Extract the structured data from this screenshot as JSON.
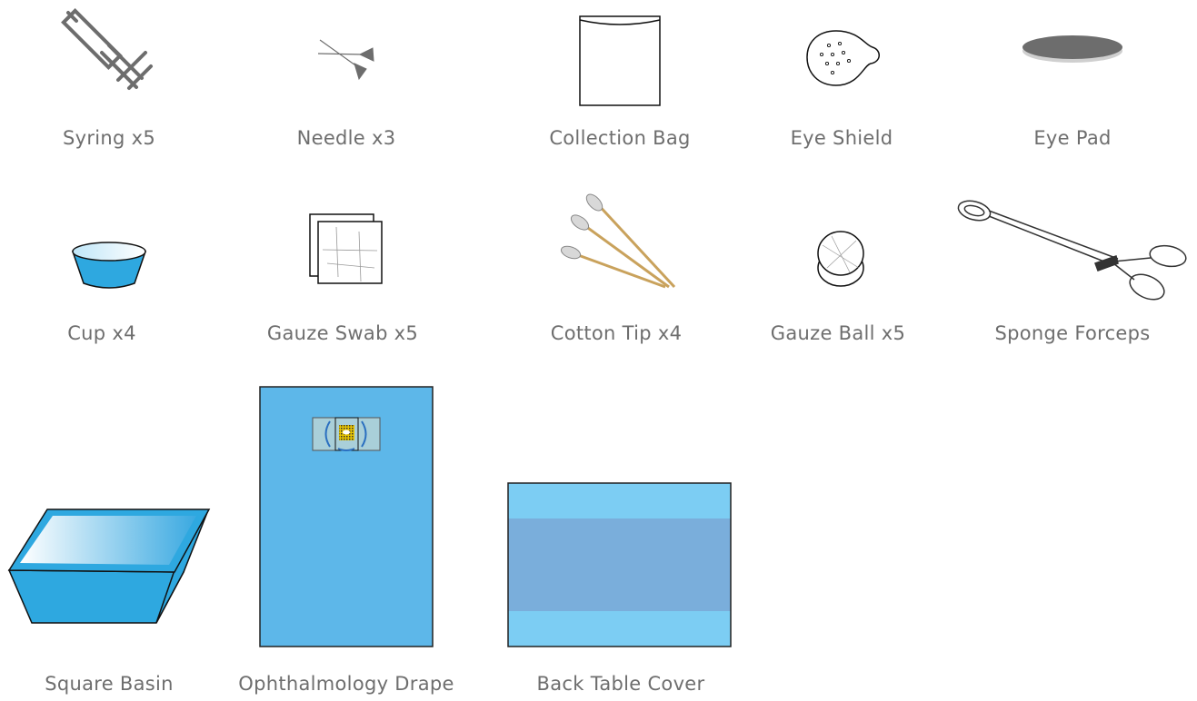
{
  "items": [
    {
      "label": "Syring x5",
      "icon": "syringe-icon"
    },
    {
      "label": "Needle x3",
      "icon": "needle-icon"
    },
    {
      "label": "Collection Bag",
      "icon": "collection-bag-icon"
    },
    {
      "label": "Eye Shield",
      "icon": "eye-shield-icon"
    },
    {
      "label": "Eye Pad",
      "icon": "eye-pad-icon"
    },
    {
      "label": "Cup x4",
      "icon": "cup-icon"
    },
    {
      "label": "Gauze Swab x5",
      "icon": "gauze-swab-icon"
    },
    {
      "label": "Cotton Tip x4",
      "icon": "cotton-tip-icon"
    },
    {
      "label": "Gauze Ball x5",
      "icon": "gauze-ball-icon"
    },
    {
      "label": "Sponge Forceps",
      "icon": "sponge-forceps-icon"
    },
    {
      "label": "Square Basin",
      "icon": "square-basin-icon"
    },
    {
      "label": "Ophthalmology Drape",
      "icon": "ophthalmology-drape-icon"
    },
    {
      "label": "Back Table Cover",
      "icon": "back-table-cover-icon"
    }
  ],
  "colors": {
    "label": "#6e6e6e",
    "icon_gray": "#6d6d6d",
    "blue": "#2ea8e0",
    "drape_blue": "#5db7e9",
    "cover_light": "#7ccdf3",
    "cover_dark": "#7aaedb"
  }
}
